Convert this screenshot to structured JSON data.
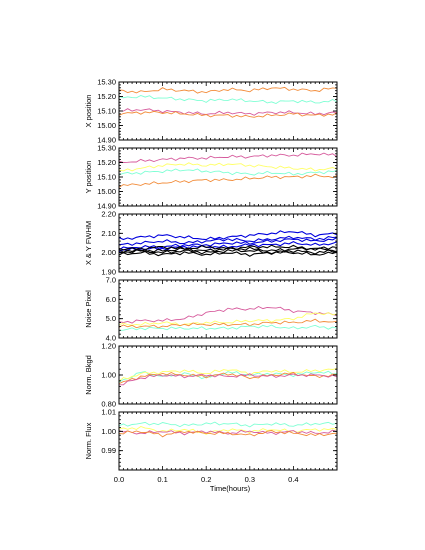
{
  "figure": {
    "xlabel": "Time(hours)",
    "xlim": [
      0.0,
      0.5
    ],
    "xticks": [
      0.0,
      0.1,
      0.2,
      0.3,
      0.4
    ],
    "xtick_labels": [
      "0.0",
      "0.1",
      "0.2",
      "0.3",
      "0.4"
    ]
  },
  "chart_data": [
    {
      "type": "line",
      "ylabel": "X position",
      "ylim": [
        14.9,
        15.3
      ],
      "yticks": [
        14.9,
        15.0,
        15.1,
        15.2,
        15.3
      ],
      "ytick_labels": [
        "14.90",
        "15.00",
        "15.10",
        "15.20",
        "15.30"
      ],
      "x": [
        0.0,
        0.05,
        0.1,
        0.15,
        0.2,
        0.25,
        0.3,
        0.35,
        0.4,
        0.45,
        0.5
      ],
      "series": [
        {
          "color": "#f28c3a",
          "values": [
            15.24,
            15.23,
            15.25,
            15.24,
            15.23,
            15.25,
            15.24,
            15.26,
            15.25,
            15.24,
            15.26
          ]
        },
        {
          "color": "#7fffd4",
          "values": [
            15.19,
            15.2,
            15.19,
            15.18,
            15.17,
            15.18,
            15.17,
            15.16,
            15.17,
            15.16,
            15.17
          ]
        },
        {
          "color": "#d65a9c",
          "values": [
            15.1,
            15.11,
            15.1,
            15.09,
            15.08,
            15.09,
            15.08,
            15.09,
            15.09,
            15.08,
            15.09
          ]
        },
        {
          "color": "#f28c3a",
          "values": [
            15.08,
            15.09,
            15.09,
            15.08,
            15.07,
            15.07,
            15.06,
            15.07,
            15.08,
            15.07,
            15.08
          ]
        }
      ]
    },
    {
      "type": "line",
      "ylabel": "Y position",
      "ylim": [
        14.9,
        15.3
      ],
      "yticks": [
        14.9,
        15.0,
        15.1,
        15.2,
        15.3
      ],
      "ytick_labels": [
        "14.90",
        "15.00",
        "15.10",
        "15.20",
        "15.30"
      ],
      "x": [
        0.0,
        0.05,
        0.1,
        0.15,
        0.2,
        0.25,
        0.3,
        0.35,
        0.4,
        0.45,
        0.5
      ],
      "series": [
        {
          "color": "#d65a9c",
          "values": [
            15.2,
            15.21,
            15.22,
            15.23,
            15.23,
            15.24,
            15.24,
            15.25,
            15.25,
            15.26,
            15.25
          ]
        },
        {
          "color": "#ffff66",
          "values": [
            15.14,
            15.16,
            15.18,
            15.19,
            15.18,
            15.19,
            15.18,
            15.17,
            15.16,
            15.15,
            15.16
          ]
        },
        {
          "color": "#7fffd4",
          "values": [
            15.12,
            15.13,
            15.14,
            15.15,
            15.14,
            15.13,
            15.12,
            15.13,
            15.12,
            15.13,
            15.14
          ]
        },
        {
          "color": "#f28c3a",
          "values": [
            15.04,
            15.05,
            15.06,
            15.07,
            15.08,
            15.08,
            15.09,
            15.1,
            15.1,
            15.11,
            15.1
          ]
        }
      ]
    },
    {
      "type": "line",
      "ylabel": "X & Y FWHM",
      "ylim": [
        1.9,
        2.2
      ],
      "yticks": [
        1.9,
        2.0,
        2.1,
        2.2
      ],
      "ytick_labels": [
        "1.90",
        "2.00",
        "2.10",
        "2.20"
      ],
      "x": [
        0.0,
        0.05,
        0.1,
        0.15,
        0.2,
        0.25,
        0.3,
        0.35,
        0.4,
        0.45,
        0.5
      ],
      "series": [
        {
          "color": "#0000dd",
          "values": [
            2.07,
            2.08,
            2.09,
            2.08,
            2.07,
            2.08,
            2.09,
            2.1,
            2.11,
            2.09,
            2.1
          ]
        },
        {
          "color": "#0000dd",
          "values": [
            2.04,
            2.05,
            2.06,
            2.05,
            2.06,
            2.07,
            2.06,
            2.07,
            2.08,
            2.07,
            2.08
          ]
        },
        {
          "color": "#0000dd",
          "values": [
            2.02,
            2.03,
            2.03,
            2.04,
            2.04,
            2.05,
            2.05,
            2.06,
            2.07,
            2.06,
            2.07
          ]
        },
        {
          "color": "#0000dd",
          "values": [
            2.01,
            2.02,
            2.02,
            2.03,
            2.03,
            2.03,
            2.04,
            2.04,
            2.05,
            2.04,
            2.05
          ]
        },
        {
          "color": "#000000",
          "values": [
            2.02,
            2.02,
            2.03,
            2.02,
            2.03,
            2.02,
            2.03,
            2.03,
            2.03,
            2.02,
            2.03
          ]
        },
        {
          "color": "#000000",
          "values": [
            2.01,
            2.01,
            2.01,
            2.02,
            2.01,
            2.02,
            2.02,
            2.01,
            2.02,
            2.02,
            2.01
          ]
        },
        {
          "color": "#000000",
          "values": [
            2.0,
            2.01,
            2.0,
            2.01,
            2.0,
            2.01,
            2.01,
            2.0,
            2.01,
            2.0,
            2.01
          ]
        },
        {
          "color": "#000000",
          "values": [
            1.99,
            2.0,
            1.99,
            2.0,
            1.99,
            2.0,
            1.99,
            2.0,
            2.0,
            1.99,
            2.0
          ]
        }
      ]
    },
    {
      "type": "line",
      "ylabel": "Noise Pixel",
      "ylim": [
        4.0,
        7.0
      ],
      "yticks": [
        4.0,
        5.0,
        6.0,
        7.0
      ],
      "ytick_labels": [
        "4.0",
        "5.0",
        "6.0",
        "7.0"
      ],
      "x": [
        0.0,
        0.05,
        0.1,
        0.15,
        0.2,
        0.25,
        0.3,
        0.35,
        0.4,
        0.45,
        0.5
      ],
      "series": [
        {
          "color": "#d65a9c",
          "values": [
            4.8,
            4.9,
            4.9,
            5.0,
            5.3,
            5.5,
            5.5,
            5.6,
            5.4,
            5.3,
            5.2
          ]
        },
        {
          "color": "#ffff66",
          "values": [
            4.7,
            4.7,
            4.8,
            4.7,
            4.8,
            4.8,
            4.9,
            4.9,
            5.0,
            5.3,
            5.2
          ]
        },
        {
          "color": "#f28c3a",
          "values": [
            4.6,
            4.6,
            4.6,
            4.7,
            4.7,
            4.7,
            4.7,
            4.8,
            4.8,
            4.9,
            4.8
          ]
        },
        {
          "color": "#7fffd4",
          "values": [
            4.4,
            4.5,
            4.5,
            4.5,
            4.5,
            4.5,
            4.6,
            4.6,
            4.5,
            4.6,
            4.5
          ]
        }
      ]
    },
    {
      "type": "line",
      "ylabel": "Norm. Bkgd",
      "ylim": [
        0.8,
        1.2
      ],
      "yticks": [
        0.8,
        1.0,
        1.2
      ],
      "ytick_labels": [
        "0.80",
        "1.00",
        "1.20"
      ],
      "x": [
        0.0,
        0.05,
        0.1,
        0.15,
        0.2,
        0.25,
        0.3,
        0.35,
        0.4,
        0.45,
        0.5
      ],
      "series": [
        {
          "color": "#7fffd4",
          "values": [
            0.95,
            1.02,
            0.99,
            1.01,
            0.98,
            1.02,
            1.0,
            1.01,
            1.0,
            1.02,
            1.01
          ]
        },
        {
          "color": "#ffff66",
          "values": [
            0.96,
            1.01,
            1.02,
            1.03,
            1.01,
            1.04,
            1.01,
            1.03,
            1.02,
            1.03,
            1.04
          ]
        },
        {
          "color": "#f28c3a",
          "values": [
            0.94,
            0.99,
            1.01,
            1.0,
            0.99,
            1.01,
            0.98,
            1.0,
            1.01,
            0.99,
            1.0
          ]
        },
        {
          "color": "#d65a9c",
          "values": [
            0.93,
            0.98,
            1.0,
            0.99,
            1.0,
            0.99,
            1.0,
            0.99,
            1.0,
            1.0,
            0.99
          ]
        }
      ]
    },
    {
      "type": "line",
      "ylabel": "Norm. Flux",
      "ylim": [
        0.98,
        1.01
      ],
      "yticks": [
        0.99,
        1.0,
        1.01
      ],
      "ytick_labels": [
        "0.99",
        "1.00",
        "1.01"
      ],
      "x": [
        0.0,
        0.05,
        0.1,
        0.15,
        0.2,
        0.25,
        0.3,
        0.35,
        0.4,
        0.45,
        0.5
      ],
      "series": [
        {
          "color": "#7fffd4",
          "values": [
            1.003,
            1.004,
            1.004,
            1.003,
            1.004,
            1.004,
            1.003,
            1.004,
            1.003,
            1.004,
            1.004
          ]
        },
        {
          "color": "#ffff66",
          "values": [
            1.001,
            1.002,
            1.0,
            1.001,
            0.999,
            1.001,
            1.0,
            1.001,
            1.0,
            1.001,
            1.001
          ]
        },
        {
          "color": "#d65a9c",
          "values": [
            1.0,
            0.999,
            1.0,
            0.999,
            1.0,
            0.999,
            1.0,
            0.999,
            1.0,
            0.999,
            1.0
          ]
        },
        {
          "color": "#f28c3a",
          "values": [
            0.999,
            1.0,
            0.998,
            1.0,
            0.999,
            0.999,
            0.998,
            1.0,
            0.999,
            0.998,
            0.999
          ]
        }
      ]
    }
  ]
}
